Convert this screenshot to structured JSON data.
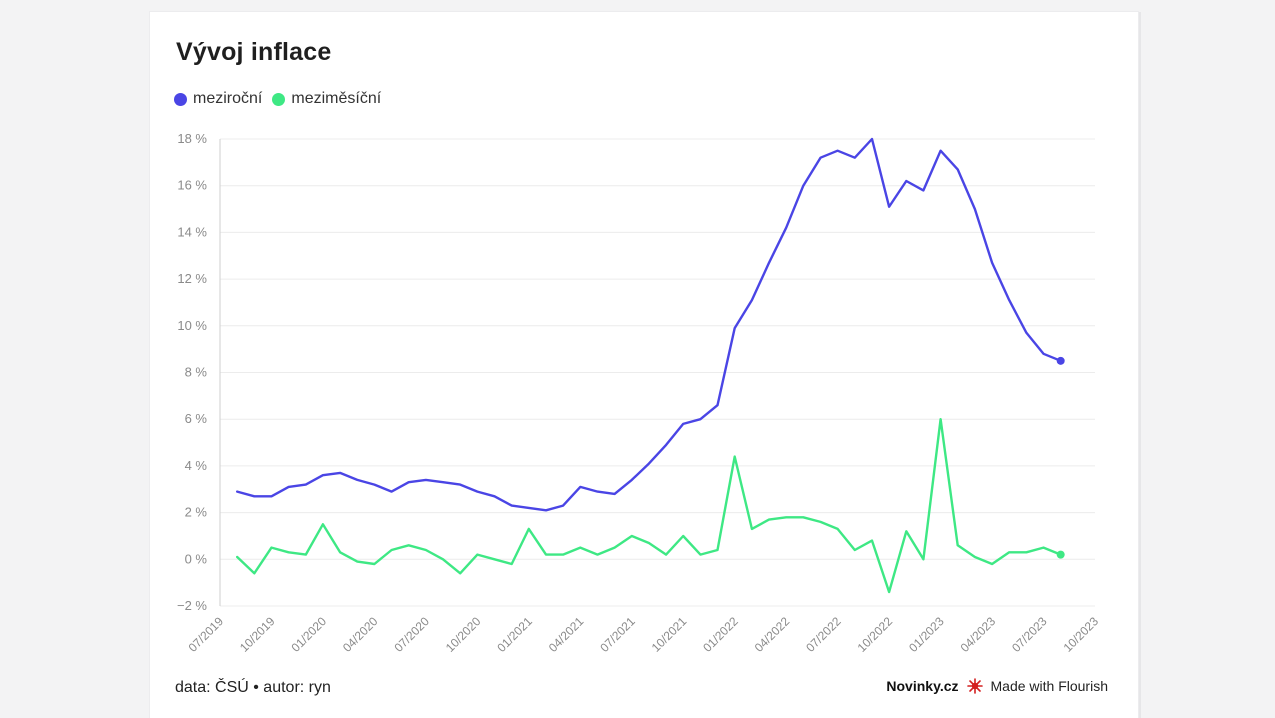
{
  "header": {
    "title": "Vývoj inflace"
  },
  "colors": {
    "yoy": "#4a45e5",
    "mom": "#3ee884",
    "grid": "#ececec",
    "axis_text": "#8a8a8a"
  },
  "footer": {
    "source": "data: ČSÚ • autor: ryn",
    "brand": "Novinky.cz",
    "made_with": "Made with Flourish",
    "flourish_icon": "flourish-logo-icon"
  },
  "chart_data": {
    "type": "line",
    "title": "Vývoj inflace",
    "ylim": [
      -2,
      18
    ],
    "yticks": [
      -2,
      0,
      2,
      4,
      6,
      8,
      10,
      12,
      14,
      16,
      18
    ],
    "ytick_labels": [
      "−2 %",
      "0 %",
      "2 %",
      "4 %",
      "6 %",
      "8 %",
      "10 %",
      "12 %",
      "14 %",
      "16 %",
      "18 %"
    ],
    "xlim": [
      "2019-07",
      "2023-10"
    ],
    "xtick_labels": [
      "07/2019",
      "10/2019",
      "01/2020",
      "04/2020",
      "07/2020",
      "10/2020",
      "01/2021",
      "04/2021",
      "07/2021",
      "10/2021",
      "01/2022",
      "04/2022",
      "07/2022",
      "10/2022",
      "01/2023",
      "04/2023",
      "07/2023",
      "10/2023"
    ],
    "grid": true,
    "legend_position": "top-left",
    "x": [
      "2019-08",
      "2019-09",
      "2019-10",
      "2019-11",
      "2019-12",
      "2020-01",
      "2020-02",
      "2020-03",
      "2020-04",
      "2020-05",
      "2020-06",
      "2020-07",
      "2020-08",
      "2020-09",
      "2020-10",
      "2020-11",
      "2020-12",
      "2021-01",
      "2021-02",
      "2021-03",
      "2021-04",
      "2021-05",
      "2021-06",
      "2021-07",
      "2021-08",
      "2021-09",
      "2021-10",
      "2021-11",
      "2021-12",
      "2022-01",
      "2022-02",
      "2022-03",
      "2022-04",
      "2022-05",
      "2022-06",
      "2022-07",
      "2022-08",
      "2022-09",
      "2022-10",
      "2022-11",
      "2022-12",
      "2023-01",
      "2023-02",
      "2023-03",
      "2023-04",
      "2023-05",
      "2023-06",
      "2023-07",
      "2023-08"
    ],
    "series": [
      {
        "name": "meziroční",
        "color": "#4a45e5",
        "values": [
          2.9,
          2.7,
          2.7,
          3.1,
          3.2,
          3.6,
          3.7,
          3.4,
          3.2,
          2.9,
          3.3,
          3.4,
          3.3,
          3.2,
          2.9,
          2.7,
          2.3,
          2.2,
          2.1,
          2.3,
          3.1,
          2.9,
          2.8,
          3.4,
          4.1,
          4.9,
          5.8,
          6.0,
          6.6,
          9.9,
          11.1,
          12.7,
          14.2,
          16.0,
          17.2,
          17.5,
          17.2,
          18.0,
          15.1,
          16.2,
          15.8,
          17.5,
          16.7,
          15.0,
          12.7,
          11.1,
          9.7,
          8.8,
          8.5
        ]
      },
      {
        "name": "meziměsíční",
        "color": "#3ee884",
        "values": [
          0.1,
          -0.6,
          0.5,
          0.3,
          0.2,
          1.5,
          0.3,
          -0.1,
          -0.2,
          0.4,
          0.6,
          0.4,
          0.0,
          -0.6,
          0.2,
          0.0,
          -0.2,
          1.3,
          0.2,
          0.2,
          0.5,
          0.2,
          0.5,
          1.0,
          0.7,
          0.2,
          1.0,
          0.2,
          0.4,
          4.4,
          1.3,
          1.7,
          1.8,
          1.8,
          1.6,
          1.3,
          0.4,
          0.8,
          -1.4,
          1.2,
          0.0,
          6.0,
          0.6,
          0.1,
          -0.2,
          0.3,
          0.3,
          0.5,
          0.2
        ]
      }
    ]
  }
}
